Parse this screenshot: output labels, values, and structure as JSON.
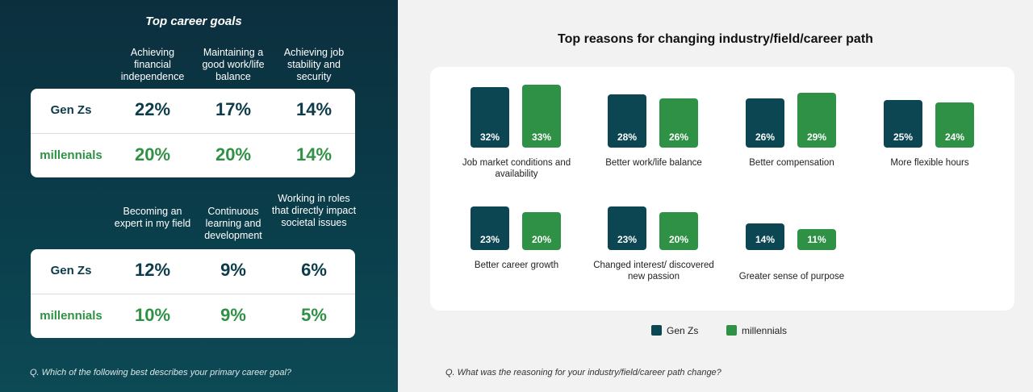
{
  "left": {
    "title": "Top career goals",
    "table1": {
      "columns": [
        "Achieving financial independence",
        "Maintaining a good work/life balance",
        "Achieving job stability and security"
      ],
      "rows": [
        {
          "label": "Gen Zs",
          "values": [
            "22%",
            "17%",
            "14%"
          ]
        },
        {
          "label": "millennials",
          "values": [
            "20%",
            "20%",
            "14%"
          ]
        }
      ]
    },
    "table2": {
      "columns": [
        "Becoming an expert in my field",
        "Continuous learning and development",
        "Working in roles that directly impact societal issues"
      ],
      "rows": [
        {
          "label": "Gen Zs",
          "values": [
            "12%",
            "9%",
            "6%"
          ]
        },
        {
          "label": "millennials",
          "values": [
            "10%",
            "9%",
            "5%"
          ]
        }
      ]
    },
    "question": "Q. Which of the following best describes your primary career goal?"
  },
  "right": {
    "question": "Q. What was the reasoning for your industry/field/career path change?"
  },
  "chart_data": [
    {
      "type": "table",
      "title": "Top career goals",
      "columns": [
        "Achieving financial independence",
        "Maintaining a good work/life balance",
        "Achieving job stability and security",
        "Becoming an expert in my field",
        "Continuous learning and development",
        "Working in roles that directly impact societal issues"
      ],
      "series": [
        {
          "name": "Gen Zs",
          "values": [
            22,
            17,
            14,
            12,
            9,
            6
          ]
        },
        {
          "name": "millennials",
          "values": [
            20,
            20,
            14,
            10,
            9,
            5
          ]
        }
      ]
    },
    {
      "type": "bar",
      "title": "Top reasons for changing industry/field/career path",
      "categories": [
        "Job market conditions and availability",
        "Better work/life balance",
        "Better compensation",
        "More flexible hours",
        "Better career growth",
        "Changed interest/ discovered new passion",
        "Greater sense of purpose"
      ],
      "series": [
        {
          "name": "Gen Zs",
          "values": [
            32,
            28,
            26,
            25,
            23,
            23,
            14
          ],
          "color": "#0c4653"
        },
        {
          "name": "millennials",
          "values": [
            33,
            26,
            29,
            24,
            20,
            20,
            11
          ],
          "color": "#2f9145"
        }
      ],
      "legend": "bottom",
      "grid": false
    }
  ]
}
